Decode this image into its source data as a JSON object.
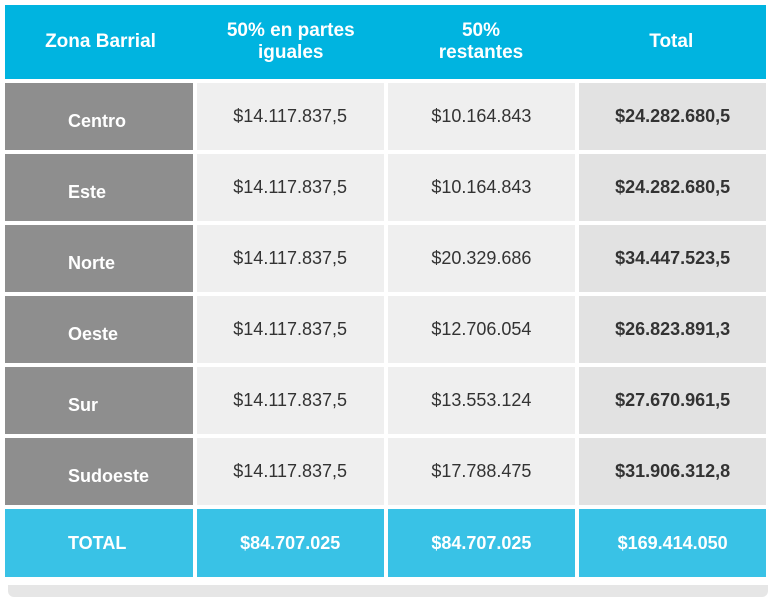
{
  "table": {
    "headers": [
      "Zona Barrial",
      "50% en partes\niguales",
      "50%\nrestantes",
      "Total"
    ],
    "rows": [
      {
        "zona": "Centro",
        "iguales": "$14.117.837,5",
        "restantes": "$10.164.843",
        "total": "$24.282.680,5"
      },
      {
        "zona": "Este",
        "iguales": "$14.117.837,5",
        "restantes": "$10.164.843",
        "total": "$24.282.680,5"
      },
      {
        "zona": "Norte",
        "iguales": "$14.117.837,5",
        "restantes": "$20.329.686",
        "total": "$34.447.523,5"
      },
      {
        "zona": "Oeste",
        "iguales": "$14.117.837,5",
        "restantes": "$12.706.054",
        "total": "$26.823.891,3"
      },
      {
        "zona": "Sur",
        "iguales": "$14.117.837,5",
        "restantes": "$13.553.124",
        "total": "$27.670.961,5"
      },
      {
        "zona": "Sudoeste",
        "iguales": "$14.117.837,5",
        "restantes": "$17.788.475",
        "total": "$31.906.312,8"
      }
    ],
    "totals": {
      "zona": "TOTAL",
      "iguales": "$84.707.025",
      "restantes": "$84.707.025",
      "total": "$169.414.050"
    }
  },
  "colors": {
    "header_bg": "#00b4e0",
    "footer_bg": "#39c2e6",
    "zone_bg": "#8e8e8e",
    "value_bg": "#efefef",
    "total_bg": "#e2e2e2"
  }
}
